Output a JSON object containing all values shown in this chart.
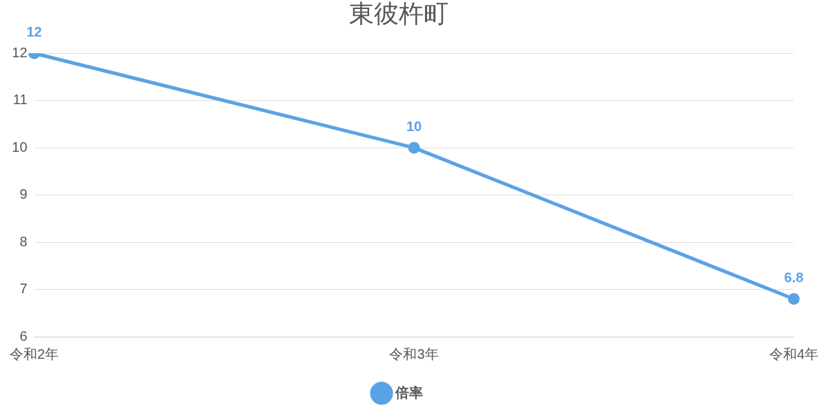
{
  "chart_data": {
    "type": "line",
    "title": "東彼杵町",
    "categories": [
      "令和2年",
      "令和3年",
      "令和4年"
    ],
    "series": [
      {
        "name": "倍率",
        "color": "#5aa2e6",
        "values": [
          12,
          10,
          6.8
        ]
      }
    ],
    "ylim": [
      6,
      12
    ],
    "yticks": [
      6,
      7,
      8,
      9,
      10,
      11,
      12
    ],
    "grid": "y",
    "legend": "bottom",
    "marker": "circle",
    "data_labels": true
  }
}
